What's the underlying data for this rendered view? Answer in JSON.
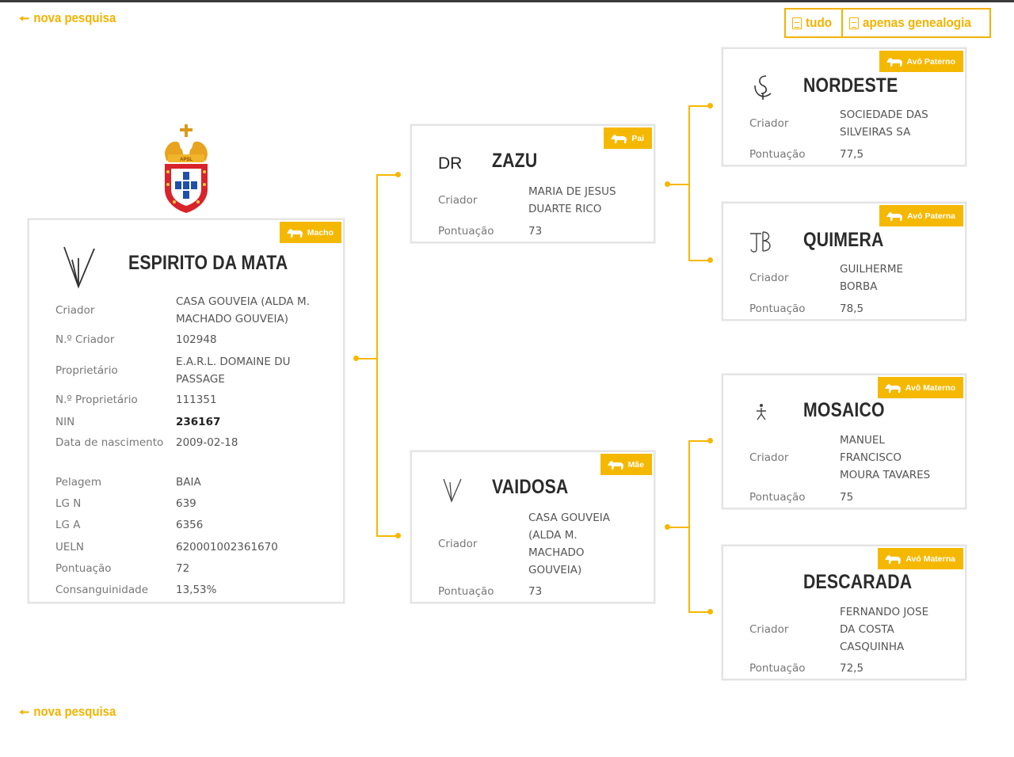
{
  "nav": {
    "back_label": "nova pesquisa",
    "pdf_all_label": "tudo",
    "pdf_genealogy_label": "apenas genealogia"
  },
  "crest": {
    "text": "APSL"
  },
  "colors": {
    "accent": "#f5b800",
    "card_border": "#e4e4e4",
    "name": "#2b2b2b"
  },
  "main_horse": {
    "badge": "Macho",
    "name": "ESPIRITO DA MATA",
    "brand_icon": "brand-mark-icon",
    "fields": [
      {
        "label": "Criador",
        "value": "CASA GOUVEIA (ALDA M. MACHADO GOUVEIA)"
      },
      {
        "label": "N.º Criador",
        "value": "102948"
      },
      {
        "label": "Proprietário",
        "value": "E.A.R.L. DOMAINE DU PASSAGE"
      },
      {
        "label": "N.º Proprietário",
        "value": "111351"
      },
      {
        "label": "NIN",
        "value": "236167"
      },
      {
        "label": "Data de nascimento",
        "value": "2009-02-18"
      },
      {
        "label": "Pelagem",
        "value": "BAIA"
      },
      {
        "label": "LG N",
        "value": "639"
      },
      {
        "label": "LG A",
        "value": "6356"
      },
      {
        "label": "UELN",
        "value": "620001002361670"
      },
      {
        "label": "Pontuação",
        "value": "72"
      },
      {
        "label": "Consanguinidade",
        "value": "13,53%"
      }
    ]
  },
  "sire": {
    "badge": "Pai",
    "brand_text": "DR",
    "name": "ZAZU",
    "breeder_label": "Criador",
    "breeder": "MARIA DE JESUS DUARTE RICO",
    "score_label": "Pontuação",
    "score": "73"
  },
  "dam": {
    "badge": "Mãe",
    "name": "VAIDOSA",
    "breeder_label": "Criador",
    "breeder": "CASA GOUVEIA (ALDA M. MACHADO GOUVEIA)",
    "score_label": "Pontuação",
    "score": "73"
  },
  "paternal_grandsire": {
    "badge": "Avô Paterno",
    "name": "NORDESTE",
    "breeder_label": "Criador",
    "breeder": "SOCIEDADE DAS SILVEIRAS SA",
    "score_label": "Pontuação",
    "score": "77,5"
  },
  "paternal_granddam": {
    "badge": "Avó Paterna",
    "name": "QUIMERA",
    "breeder_label": "Criador",
    "breeder": "GUILHERME BORBA",
    "score_label": "Pontuação",
    "score": "78,5"
  },
  "maternal_grandsire": {
    "badge": "Avô Materno",
    "name": "MOSAICO",
    "breeder_label": "Criador",
    "breeder": "MANUEL FRANCISCO MOURA TAVARES",
    "score_label": "Pontuação",
    "score": "75"
  },
  "maternal_granddam": {
    "badge": "Avó Materna",
    "name": "DESCARADA",
    "breeder_label": "Criador",
    "breeder": "FERNANDO JOSE DA COSTA CASQUINHA",
    "score_label": "Pontuação",
    "score": "72,5"
  }
}
